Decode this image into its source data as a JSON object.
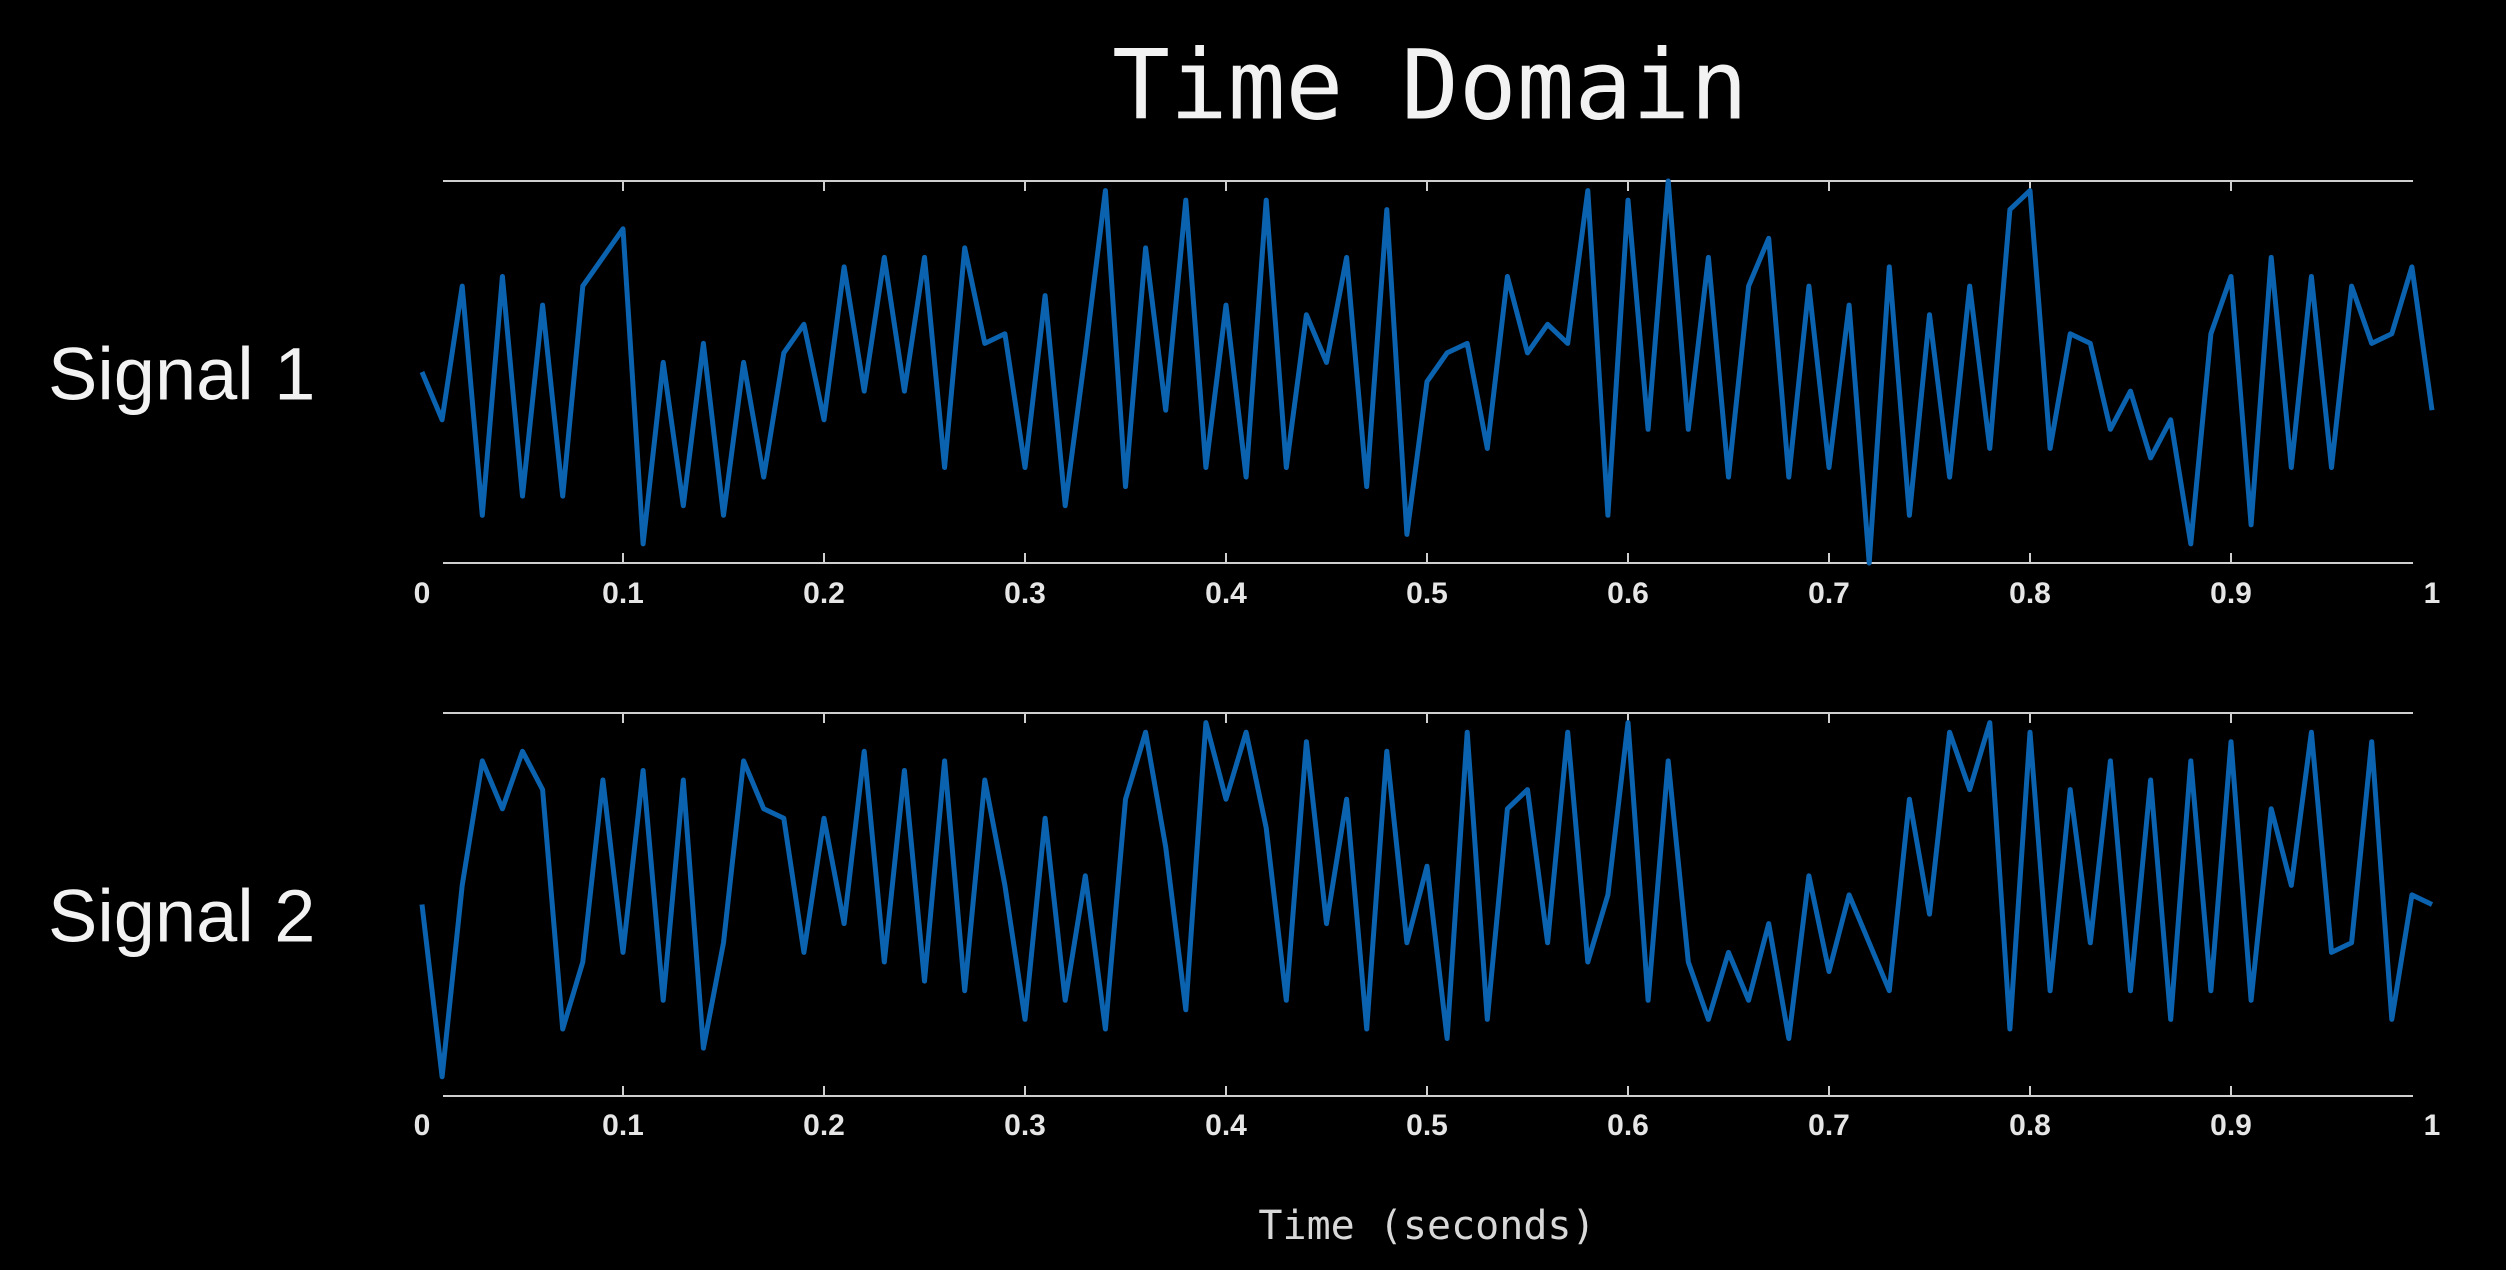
{
  "chart_data": [
    {
      "type": "line",
      "title": "Time Domain",
      "ylabel": "Signal 1",
      "color": "#0b62ae",
      "xlim": [
        0,
        1
      ],
      "ylim": [
        -1,
        1
      ],
      "xticks": [
        0,
        0.1,
        0.2,
        0.3,
        0.4,
        0.5,
        0.6,
        0.7,
        0.8,
        0.9,
        1
      ],
      "x": [
        0,
        0.01,
        0.02,
        0.03,
        0.04,
        0.05,
        0.06,
        0.07,
        0.08,
        0.09,
        0.1,
        0.11,
        0.12,
        0.13,
        0.14,
        0.15,
        0.16,
        0.17,
        0.18,
        0.19,
        0.2,
        0.21,
        0.22,
        0.23,
        0.24,
        0.25,
        0.26,
        0.27,
        0.28,
        0.29,
        0.3,
        0.31,
        0.32,
        0.33,
        0.34,
        0.35,
        0.36,
        0.37,
        0.38,
        0.39,
        0.4,
        0.41,
        0.42,
        0.43,
        0.44,
        0.45,
        0.46,
        0.47,
        0.48,
        0.49,
        0.5,
        0.51,
        0.52,
        0.53,
        0.54,
        0.55,
        0.56,
        0.57,
        0.58,
        0.59,
        0.6,
        0.61,
        0.62,
        0.63,
        0.64,
        0.65,
        0.66,
        0.67,
        0.68,
        0.69,
        0.7,
        0.71,
        0.72,
        0.73,
        0.74,
        0.75,
        0.76,
        0.77,
        0.78,
        0.79,
        0.8,
        0.81,
        0.82,
        0.83,
        0.84,
        0.85,
        0.86,
        0.87,
        0.88,
        0.89,
        0.9,
        0.91,
        0.92,
        0.93,
        0.94,
        0.95,
        0.96,
        0.97,
        0.98,
        0.99,
        1
      ],
      "values": [
        0,
        -0.25,
        0.45,
        -0.75,
        0.5,
        -0.65,
        0.35,
        -0.65,
        0.45,
        0.6,
        0.75,
        -0.9,
        0.05,
        -0.7,
        0.15,
        -0.75,
        0.05,
        -0.55,
        0.1,
        0.25,
        -0.25,
        0.55,
        -0.1,
        0.6,
        -0.1,
        0.6,
        -0.5,
        0.65,
        0.15,
        0.2,
        -0.5,
        0.4,
        -0.7,
        0.1,
        0.95,
        -0.6,
        0.65,
        -0.2,
        0.9,
        -0.5,
        0.35,
        -0.55,
        0.9,
        -0.5,
        0.3,
        0.05,
        0.6,
        -0.6,
        0.85,
        -0.85,
        -0.05,
        0.1,
        0.15,
        -0.4,
        0.5,
        0.1,
        0.25,
        0.15,
        0.95,
        -0.75,
        0.9,
        -0.3,
        1.0,
        -0.3,
        0.6,
        -0.55,
        0.45,
        0.7,
        -0.55,
        0.45,
        -0.5,
        0.35,
        -1.0,
        0.55,
        -0.75,
        0.3,
        -0.55,
        0.45,
        -0.4,
        0.85,
        0.95,
        -0.4,
        0.2,
        0.15,
        -0.3,
        -0.1,
        -0.45,
        -0.25,
        -0.9,
        0.2,
        0.5,
        -0.8,
        0.6,
        -0.5,
        0.5,
        -0.5,
        0.45,
        0.15,
        0.2,
        0.55,
        -0.2
      ]
    },
    {
      "type": "line",
      "ylabel": "Signal 2",
      "xlabel": "Time (seconds)",
      "color": "#0b62ae",
      "xlim": [
        0,
        1
      ],
      "ylim": [
        -1,
        1
      ],
      "xticks": [
        0,
        0.1,
        0.2,
        0.3,
        0.4,
        0.5,
        0.6,
        0.7,
        0.8,
        0.9,
        1
      ],
      "x": [
        0,
        0.01,
        0.02,
        0.03,
        0.04,
        0.05,
        0.06,
        0.07,
        0.08,
        0.09,
        0.1,
        0.11,
        0.12,
        0.13,
        0.14,
        0.15,
        0.16,
        0.17,
        0.18,
        0.19,
        0.2,
        0.21,
        0.22,
        0.23,
        0.24,
        0.25,
        0.26,
        0.27,
        0.28,
        0.29,
        0.3,
        0.31,
        0.32,
        0.33,
        0.34,
        0.35,
        0.36,
        0.37,
        0.38,
        0.39,
        0.4,
        0.41,
        0.42,
        0.43,
        0.44,
        0.45,
        0.46,
        0.47,
        0.48,
        0.49,
        0.5,
        0.51,
        0.52,
        0.53,
        0.54,
        0.55,
        0.56,
        0.57,
        0.58,
        0.59,
        0.6,
        0.61,
        0.62,
        0.63,
        0.64,
        0.65,
        0.66,
        0.67,
        0.68,
        0.69,
        0.7,
        0.71,
        0.72,
        0.73,
        0.74,
        0.75,
        0.76,
        0.77,
        0.78,
        0.79,
        0.8,
        0.81,
        0.82,
        0.83,
        0.84,
        0.85,
        0.86,
        0.87,
        0.88,
        0.89,
        0.9,
        0.91,
        0.92,
        0.93,
        0.94,
        0.95,
        0.96,
        0.97,
        0.98,
        0.99,
        1
      ],
      "values": [
        0,
        -0.9,
        0.1,
        0.75,
        0.5,
        0.8,
        0.6,
        -0.65,
        -0.3,
        0.65,
        -0.25,
        0.7,
        -0.5,
        0.65,
        -0.75,
        -0.2,
        0.75,
        0.5,
        0.45,
        -0.25,
        0.45,
        -0.1,
        0.8,
        -0.3,
        0.7,
        -0.4,
        0.75,
        -0.45,
        0.65,
        0.1,
        -0.6,
        0.45,
        -0.5,
        0.15,
        -0.65,
        0.55,
        0.9,
        0.3,
        -0.55,
        0.95,
        0.55,
        0.9,
        0.4,
        -0.5,
        0.85,
        -0.1,
        0.55,
        -0.65,
        0.8,
        -0.2,
        0.2,
        -0.7,
        0.9,
        -0.6,
        0.5,
        0.6,
        -0.2,
        0.9,
        -0.3,
        0.05,
        0.95,
        -0.5,
        0.75,
        -0.3,
        -0.6,
        -0.25,
        -0.5,
        -0.1,
        -0.7,
        0.15,
        -0.35,
        0.05,
        -0.2,
        -0.45,
        0.55,
        -0.05,
        0.9,
        0.6,
        0.95,
        -0.65,
        0.9,
        -0.45,
        0.6,
        -0.2,
        0.75,
        -0.45,
        0.65,
        -0.6,
        0.75,
        -0.45,
        0.85,
        -0.5,
        0.5,
        0.1,
        0.9,
        -0.25,
        -0.2,
        0.85,
        -0.6,
        0.05,
        0.0
      ]
    }
  ]
}
